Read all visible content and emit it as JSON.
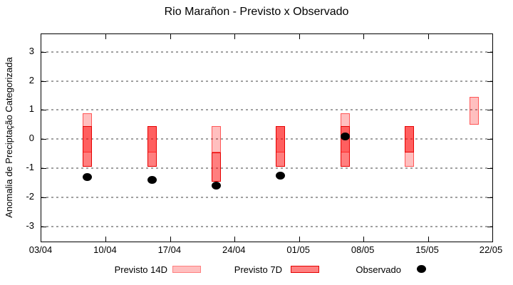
{
  "chart_data": {
    "type": "bar",
    "subtype": "forecast-range-boxes-with-observed-dots",
    "title": "Rio Marañon - Previsto x Observado",
    "ylabel": "Anomalia de Preciptação Categorizada",
    "xlabel": "",
    "grid": "horizontal-dashed",
    "legend_position": "bottom",
    "x_tick_labels": [
      "03/04",
      "10/04",
      "17/04",
      "24/04",
      "01/05",
      "08/05",
      "15/05",
      "22/05"
    ],
    "x_tick_days": [
      0,
      7,
      14,
      21,
      28,
      35,
      42,
      49
    ],
    "x_span_days": 49,
    "y_ticks": [
      -3,
      -2,
      -1,
      0,
      1,
      2,
      3
    ],
    "ylim": [
      -3.5,
      3.6
    ],
    "points": [
      {
        "date": "08/04",
        "day": 5,
        "previsto_14d": [
          -0.45,
          0.9
        ],
        "previsto_7d": [
          -0.95,
          0.45
        ],
        "observado": -1.3
      },
      {
        "date": "15/04",
        "day": 12,
        "previsto_14d": [
          -0.45,
          0.45
        ],
        "previsto_7d": [
          -0.95,
          0.45
        ],
        "observado": -1.4
      },
      {
        "date": "22/04",
        "day": 19,
        "previsto_14d": [
          -0.45,
          0.45
        ],
        "previsto_7d": [
          -1.45,
          -0.45
        ],
        "observado": -1.6
      },
      {
        "date": "29/04",
        "day": 26,
        "previsto_14d": [
          -0.45,
          0.45
        ],
        "previsto_7d": [
          -0.95,
          0.45
        ],
        "observado": -1.25
      },
      {
        "date": "06/05",
        "day": 33,
        "previsto_14d": [
          -0.45,
          0.9
        ],
        "previsto_7d": [
          -0.95,
          0.45
        ],
        "observado": 0.1
      },
      {
        "date": "13/05",
        "day": 40,
        "previsto_14d": [
          -0.95,
          0.45
        ],
        "previsto_7d": [
          -0.45,
          0.45
        ],
        "observado": null
      },
      {
        "date": "20/05",
        "day": 47,
        "previsto_14d": [
          0.5,
          1.45
        ],
        "previsto_7d": null,
        "observado": null
      }
    ],
    "legend": [
      {
        "label": "Previsto 14D",
        "type": "box",
        "fill": "#ffbfbf",
        "border": "#ff8080"
      },
      {
        "label": "Previsto 7D",
        "type": "box",
        "fill": "#ff8080",
        "border": "#e60000"
      },
      {
        "label": "Observado",
        "type": "dot",
        "fill": "#000000"
      }
    ],
    "colors": {
      "previsto_14d_fill": "#ffbfbf",
      "previsto_14d_border": "#ff8080",
      "previsto_7d_fill": "#ff8080",
      "previsto_7d_border": "#e60000",
      "overlap_fill": "#ff6060",
      "observado": "#000000",
      "grid": "#a0a0a0",
      "axis": "#000000"
    }
  }
}
